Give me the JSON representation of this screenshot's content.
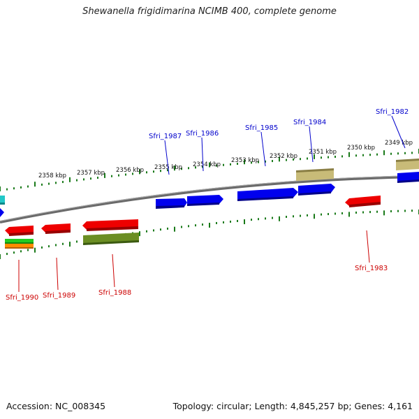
{
  "title": "Shewanella frigidimarina NCIMB 400, complete genome",
  "accession": "Accession: NC_008345",
  "stats": "Topology: circular; Length: 4,845,257 bp; Genes: 4,161",
  "colors": {
    "forward_label": "#0000cc",
    "reverse_label": "#cc0000",
    "tick": "#1a7a1a",
    "backbone": "#808080",
    "cds_forward": "#0000ee",
    "cds_reverse": "#ee0000",
    "olive_feature": "#6b8e23",
    "khaki_feature": "#c8bb78"
  },
  "kbp_labels": [
    "2358 kbp",
    "2357 kbp",
    "2356 kbp",
    "2355 kbp",
    "2354 kbp",
    "2353 kbp",
    "2352 kbp",
    "2351 kbp",
    "2350 kbp",
    "2349 kbp"
  ],
  "forward_genes": [
    "Sfri_1987",
    "Sfri_1986",
    "Sfri_1985",
    "Sfri_1984",
    "Sfri_1982"
  ],
  "reverse_genes": [
    "Sfri_1990",
    "Sfri_1989",
    "Sfri_1988",
    "Sfri_1983"
  ]
}
